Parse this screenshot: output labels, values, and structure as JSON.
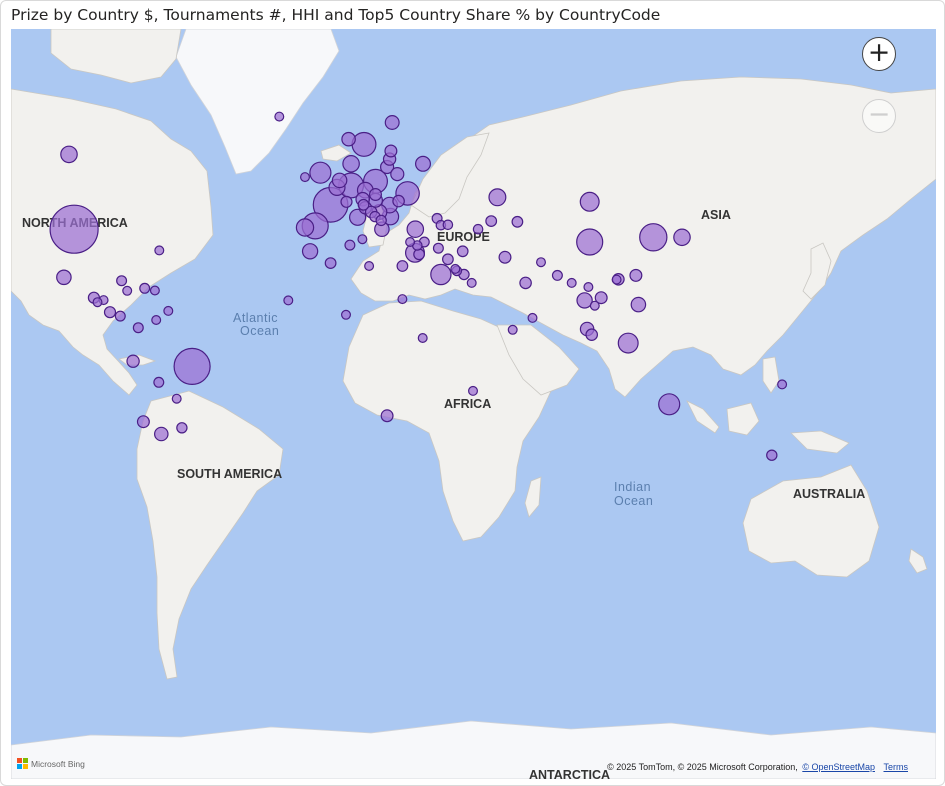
{
  "title": "Prize by Country $, Tournaments #, HHI and Top5 Country Share % by CountryCode",
  "colors": {
    "bubble_fill": "#9b6fd3",
    "bubble_stroke": "#4a1f86",
    "water": "#abc8f2",
    "land": "#f2f1ee"
  },
  "map": {
    "labels": {
      "north_america": "NORTH AMERICA",
      "south_america": "SOUTH AMERICA",
      "europe": "EUROPE",
      "asia": "ASIA",
      "africa": "AFRICA",
      "australia": "AUSTRALIA",
      "antarctica": "ANTARCTICA",
      "atlantic_1": "Atlantic",
      "atlantic_2": "Ocean",
      "indian_1": "Indian",
      "indian_2": "Ocean"
    },
    "zoom_in_icon": "plus-icon",
    "zoom_out_icon": "minus-icon",
    "zoom_out_enabled": false,
    "attribution": {
      "text": "© 2025 TomTom, © 2025 Microsoft Corporation,",
      "link": "© OpenStreetMap",
      "terms": "Terms"
    },
    "bing_logo": "Microsoft Bing"
  },
  "countries": [
    {
      "name": "United States",
      "lat": 39,
      "lon": -98,
      "size": 1.0
    },
    {
      "name": "Canada",
      "lat": 58,
      "lon": -100,
      "size": 0.24
    },
    {
      "name": "Mexico",
      "lat": 23,
      "lon": -102,
      "size": 0.19
    },
    {
      "name": "Brazil",
      "lat": -11,
      "lon": -52,
      "size": 0.71
    },
    {
      "name": "Argentina",
      "lat": -35,
      "lon": -64,
      "size": 0.17
    },
    {
      "name": "Chile",
      "lat": -31,
      "lon": -71,
      "size": 0.13
    },
    {
      "name": "Peru",
      "lat": -9,
      "lon": -75,
      "size": 0.14
    },
    {
      "name": "Colombia",
      "lat": 4,
      "lon": -73,
      "size": 0.08
    },
    {
      "name": "Uruguay",
      "lat": -33,
      "lon": -56,
      "size": 0.09
    },
    {
      "name": "Bolivia",
      "lat": -17,
      "lon": -65,
      "size": 0.08
    },
    {
      "name": "Paraguay",
      "lat": -23,
      "lon": -58,
      "size": 0.06
    },
    {
      "name": "Venezuela",
      "lat": 7,
      "lon": -66,
      "size": 0.06
    },
    {
      "name": "Guatemala",
      "lat": 15.5,
      "lon": -90.3,
      "size": 0.11
    },
    {
      "name": "Honduras",
      "lat": 14.6,
      "lon": -86.5,
      "size": 0.06
    },
    {
      "name": "El Salvador",
      "lat": 13.8,
      "lon": -88.9,
      "size": 0.06
    },
    {
      "name": "Costa Rica",
      "lat": 10,
      "lon": -84,
      "size": 0.11
    },
    {
      "name": "Panama",
      "lat": 8.5,
      "lon": -80,
      "size": 0.08
    },
    {
      "name": "Cuba",
      "lat": 21.8,
      "lon": -79.5,
      "size": 0.08
    },
    {
      "name": "Dominican Republic",
      "lat": 19,
      "lon": -70.5,
      "size": 0.08
    },
    {
      "name": "Puerto Rico",
      "lat": 18.2,
      "lon": -66.5,
      "size": 0.06
    },
    {
      "name": "Jamaica",
      "lat": 18.1,
      "lon": -77.3,
      "size": 0.06
    },
    {
      "name": "Trinidad and Tobago",
      "lat": 10.5,
      "lon": -61.3,
      "size": 0.06
    },
    {
      "name": "Bermuda",
      "lat": 32.3,
      "lon": -64.8,
      "size": 0.06
    },
    {
      "name": "Iceland",
      "lat": 65,
      "lon": -18,
      "size": 0.06
    },
    {
      "name": "United Kingdom",
      "lat": 54,
      "lon": -2,
      "size": 0.35
    },
    {
      "name": "Ireland",
      "lat": 53,
      "lon": -8,
      "size": 0.06
    },
    {
      "name": "France",
      "lat": 46,
      "lon": 2,
      "size": 0.68
    },
    {
      "name": "Germany",
      "lat": 51,
      "lon": 10,
      "size": 0.44
    },
    {
      "name": "Spain",
      "lat": 40,
      "lon": -4,
      "size": 0.47
    },
    {
      "name": "Portugal",
      "lat": 39.5,
      "lon": -8,
      "size": 0.26
    },
    {
      "name": "Italy",
      "lat": 42.5,
      "lon": 12.5,
      "size": 0.23
    },
    {
      "name": "Netherlands",
      "lat": 52.2,
      "lon": 5.5,
      "size": 0.19
    },
    {
      "name": "Belgium",
      "lat": 50.5,
      "lon": 4.5,
      "size": 0.23
    },
    {
      "name": "Switzerland",
      "lat": 46.8,
      "lon": 8.2,
      "size": 0.11
    },
    {
      "name": "Austria",
      "lat": 47.5,
      "lon": 14.5,
      "size": 0.17
    },
    {
      "name": "Denmark",
      "lat": 56,
      "lon": 10,
      "size": 0.24
    },
    {
      "name": "Sweden",
      "lat": 60,
      "lon": 15,
      "size": 0.42
    },
    {
      "name": "Norway",
      "lat": 61,
      "lon": 9,
      "size": 0.17
    },
    {
      "name": "Finland",
      "lat": 64,
      "lon": 26,
      "size": 0.18
    },
    {
      "name": "Estonia",
      "lat": 58.7,
      "lon": 25.5,
      "size": 0.13
    },
    {
      "name": "Latvia",
      "lat": 57,
      "lon": 25,
      "size": 0.14
    },
    {
      "name": "Lithuania",
      "lat": 55.3,
      "lon": 24,
      "size": 0.16
    },
    {
      "name": "Poland",
      "lat": 52,
      "lon": 19.5,
      "size": 0.42
    },
    {
      "name": "Belarus",
      "lat": 53.7,
      "lon": 28,
      "size": 0.16
    },
    {
      "name": "Ukraine",
      "lat": 49,
      "lon": 32,
      "size": 0.41
    },
    {
      "name": "Russia",
      "lat": 56,
      "lon": 38,
      "size": 0.2
    },
    {
      "name": "Czechia",
      "lat": 49.8,
      "lon": 15.5,
      "size": 0.22
    },
    {
      "name": "Slovakia",
      "lat": 48.7,
      "lon": 19.5,
      "size": 0.13
    },
    {
      "name": "Hungary",
      "lat": 47.2,
      "lon": 19.5,
      "size": 0.18
    },
    {
      "name": "Romania",
      "lat": 45.9,
      "lon": 25,
      "size": 0.22
    },
    {
      "name": "Moldova",
      "lat": 47,
      "lon": 28.5,
      "size": 0.12
    },
    {
      "name": "Slovenia",
      "lat": 46,
      "lon": 14.8,
      "size": 0.1
    },
    {
      "name": "Croatia",
      "lat": 45.2,
      "lon": 15.5,
      "size": 0.14
    },
    {
      "name": "Bosnia and Herzegovina",
      "lat": 44,
      "lon": 17.8,
      "size": 0.12
    },
    {
      "name": "Serbia",
      "lat": 44,
      "lon": 21,
      "size": 0.2
    },
    {
      "name": "Montenegro",
      "lat": 42.7,
      "lon": 19.3,
      "size": 0.09
    },
    {
      "name": "North Macedonia",
      "lat": 41.6,
      "lon": 21.7,
      "size": 0.09
    },
    {
      "name": "Bulgaria",
      "lat": 42.7,
      "lon": 25.3,
      "size": 0.24
    },
    {
      "name": "Greece",
      "lat": 39,
      "lon": 22,
      "size": 0.19
    },
    {
      "name": "Turkey",
      "lat": 39,
      "lon": 35,
      "size": 0.24
    },
    {
      "name": "Cyprus",
      "lat": 35,
      "lon": 33,
      "size": 0.06
    },
    {
      "name": "Malta",
      "lat": 35.9,
      "lon": 14.4,
      "size": 0.06
    },
    {
      "name": "Georgia",
      "lat": 42.2,
      "lon": 43.5,
      "size": 0.08
    },
    {
      "name": "Armenia",
      "lat": 40.2,
      "lon": 45,
      "size": 0.07
    },
    {
      "name": "Azerbaijan",
      "lat": 40.3,
      "lon": 47.7,
      "size": 0.07
    },
    {
      "name": "Kazakhstan",
      "lat": 48,
      "lon": 67,
      "size": 0.25
    },
    {
      "name": "Uzbekistan",
      "lat": 41.4,
      "lon": 64.6,
      "size": 0.1
    },
    {
      "name": "Kyrgyzstan",
      "lat": 41.2,
      "lon": 74.8,
      "size": 0.1
    },
    {
      "name": "Turkmenistan",
      "lat": 39,
      "lon": 59.5,
      "size": 0.07
    },
    {
      "name": "Mongolia",
      "lat": 46.8,
      "lon": 103,
      "size": 0.3
    },
    {
      "name": "China",
      "lat": 35,
      "lon": 103,
      "size": 0.47
    },
    {
      "name": "South Korea",
      "lat": 36.5,
      "lon": 127.8,
      "size": 0.5
    },
    {
      "name": "Japan",
      "lat": 36.5,
      "lon": 139,
      "size": 0.24
    },
    {
      "name": "Taiwan",
      "lat": 23.7,
      "lon": 121,
      "size": 0.13
    },
    {
      "name": "Hong Kong",
      "lat": 22.3,
      "lon": 114.2,
      "size": 0.12
    },
    {
      "name": "Macao",
      "lat": 22.2,
      "lon": 113.5,
      "size": 0.06
    },
    {
      "name": "Philippines",
      "lat": 12.9,
      "lon": 122,
      "size": 0.19
    },
    {
      "name": "Vietnam",
      "lat": 15.5,
      "lon": 107.5,
      "size": 0.13
    },
    {
      "name": "Thailand",
      "lat": 14.5,
      "lon": 101,
      "size": 0.21
    },
    {
      "name": "Cambodia",
      "lat": 12.5,
      "lon": 105,
      "size": 0.06
    },
    {
      "name": "Laos",
      "lat": 19.5,
      "lon": 102.5,
      "size": 0.06
    },
    {
      "name": "Myanmar",
      "lat": 21,
      "lon": 96,
      "size": 0.06
    },
    {
      "name": "Malaysia",
      "lat": 3.5,
      "lon": 102,
      "size": 0.17
    },
    {
      "name": "Singapore",
      "lat": 1.3,
      "lon": 103.8,
      "size": 0.12
    },
    {
      "name": "Indonesia",
      "lat": -2,
      "lon": 118,
      "size": 0.32
    },
    {
      "name": "Sri Lanka",
      "lat": 7.8,
      "lon": 80.7,
      "size": 0.06
    },
    {
      "name": "India",
      "lat": 21,
      "lon": 78,
      "size": 0.12
    },
    {
      "name": "Nepal",
      "lat": 28.3,
      "lon": 84,
      "size": 0.06
    },
    {
      "name": "Bangladesh",
      "lat": 23.7,
      "lon": 90.4,
      "size": 0.08
    },
    {
      "name": "Pakistan",
      "lat": 30,
      "lon": 70,
      "size": 0.13
    },
    {
      "name": "Iran",
      "lat": 32,
      "lon": 53.5,
      "size": 0.1
    },
    {
      "name": "Iraq",
      "lat": 33,
      "lon": 44,
      "size": 0.08
    },
    {
      "name": "Syria",
      "lat": 35,
      "lon": 38.5,
      "size": 0.08
    },
    {
      "name": "Lebanon",
      "lat": 33.9,
      "lon": 35.8,
      "size": 0.07
    },
    {
      "name": "Jordan",
      "lat": 31,
      "lon": 36.5,
      "size": 0.1
    },
    {
      "name": "Israel",
      "lat": 31.5,
      "lon": 34.9,
      "size": 0.3
    },
    {
      "name": "Saudi Arabia",
      "lat": 24,
      "lon": 45,
      "size": 0.33
    },
    {
      "name": "Kuwait",
      "lat": 29.3,
      "lon": 47.7,
      "size": 0.1
    },
    {
      "name": "Bahrain",
      "lat": 26,
      "lon": 50.6,
      "size": 0.06
    },
    {
      "name": "Qatar",
      "lat": 25.3,
      "lon": 51.2,
      "size": 0.07
    },
    {
      "name": "United Arab Emirates",
      "lat": 24,
      "lon": 54,
      "size": 0.09
    },
    {
      "name": "Oman",
      "lat": 21,
      "lon": 57,
      "size": 0.06
    },
    {
      "name": "Egypt",
      "lat": 27,
      "lon": 30,
      "size": 0.1
    },
    {
      "name": "Libya",
      "lat": 27,
      "lon": 17,
      "size": 0.06
    },
    {
      "name": "Tunisia",
      "lat": 34,
      "lon": 9.5,
      "size": 0.08
    },
    {
      "name": "Algeria",
      "lat": 28,
      "lon": 2,
      "size": 0.1
    },
    {
      "name": "Morocco",
      "lat": 32,
      "lon": -6,
      "size": 0.21
    },
    {
      "name": "Senegal",
      "lat": 14.5,
      "lon": -14.5,
      "size": 0.06
    },
    {
      "name": "Nigeria",
      "lat": 9,
      "lon": 8,
      "size": 0.06
    },
    {
      "name": "Sudan",
      "lat": 15,
      "lon": 30,
      "size": 0.06
    },
    {
      "name": "Kenya",
      "lat": 0,
      "lon": 37.9,
      "size": 0.06
    },
    {
      "name": "South Africa",
      "lat": -29,
      "lon": 24,
      "size": 0.13
    },
    {
      "name": "Mauritius",
      "lat": -20.2,
      "lon": 57.5,
      "size": 0.06
    },
    {
      "name": "Maldives",
      "lat": 3.2,
      "lon": 73,
      "size": 0.06
    },
    {
      "name": "Australia",
      "lat": -25,
      "lon": 134,
      "size": 0.35
    },
    {
      "name": "New Zealand",
      "lat": -41.5,
      "lon": 174,
      "size": 0.09
    },
    {
      "name": "Fiji",
      "lat": -17.8,
      "lon": 178,
      "size": 0.06
    }
  ]
}
